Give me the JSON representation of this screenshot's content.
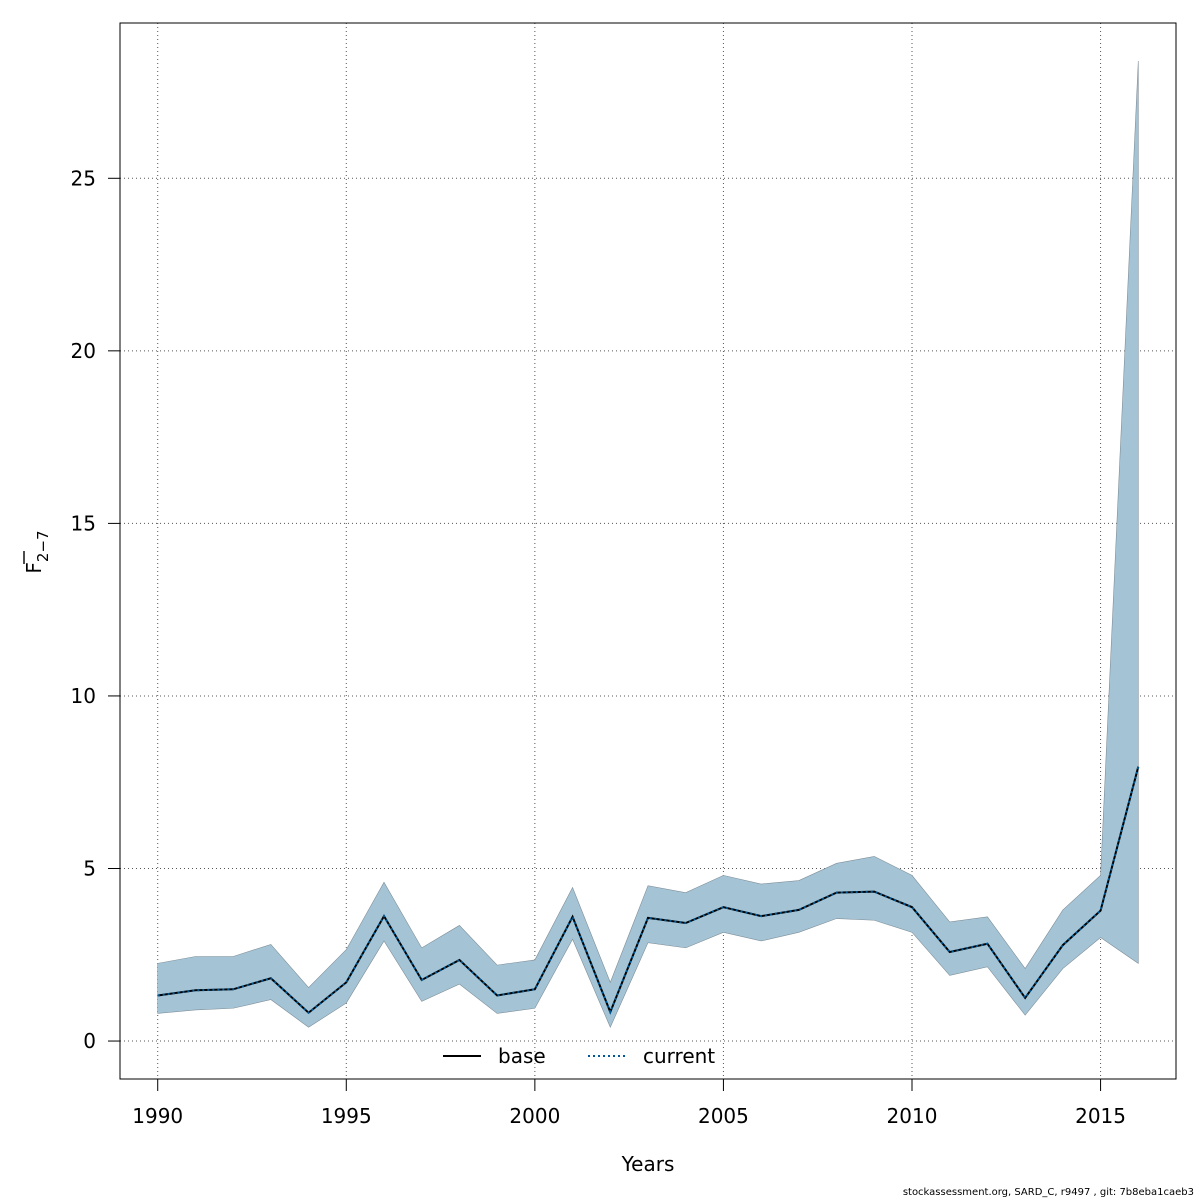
{
  "chart_data": {
    "type": "line",
    "xlabel": "Years",
    "ylabel": "F",
    "ylabel_sub": "2−7",
    "xlim": [
      1989,
      2017
    ],
    "ylim": [
      -1.1,
      29.5
    ],
    "xticks": [
      1990,
      1995,
      2000,
      2005,
      2010,
      2015
    ],
    "yticks": [
      0,
      5,
      10,
      15,
      20,
      25
    ],
    "grid": true,
    "legend_position": "bottom-center",
    "x": [
      1990,
      1991,
      1992,
      1993,
      1994,
      1995,
      1996,
      1997,
      1998,
      1999,
      2000,
      2001,
      2002,
      2003,
      2004,
      2005,
      2006,
      2007,
      2008,
      2009,
      2010,
      2011,
      2012,
      2013,
      2014,
      2015,
      2016
    ],
    "band": {
      "color": "#A4C4D6",
      "upper": [
        2.25,
        2.45,
        2.45,
        2.8,
        1.55,
        2.65,
        4.6,
        2.7,
        3.35,
        2.2,
        2.35,
        4.45,
        1.7,
        4.5,
        4.3,
        4.8,
        4.55,
        4.65,
        5.15,
        5.35,
        4.8,
        3.45,
        3.6,
        2.1,
        3.8,
        4.8,
        28.4
      ],
      "lower": [
        0.8,
        0.9,
        0.95,
        1.2,
        0.4,
        1.1,
        2.9,
        1.15,
        1.65,
        0.8,
        0.95,
        2.95,
        0.4,
        2.85,
        2.7,
        3.15,
        2.9,
        3.15,
        3.55,
        3.5,
        3.15,
        1.9,
        2.15,
        0.75,
        2.1,
        3.0,
        2.25
      ]
    },
    "series": [
      {
        "name": "base",
        "style": "solid",
        "color": "#000000",
        "values": [
          1.32,
          1.47,
          1.5,
          1.82,
          0.82,
          1.7,
          3.62,
          1.77,
          2.35,
          1.32,
          1.5,
          3.6,
          0.84,
          3.57,
          3.42,
          3.88,
          3.62,
          3.8,
          4.3,
          4.33,
          3.88,
          2.58,
          2.82,
          1.25,
          2.78,
          3.78,
          7.95
        ]
      },
      {
        "name": "current",
        "style": "dotted",
        "color": "#005A96",
        "values": [
          1.32,
          1.47,
          1.5,
          1.82,
          0.82,
          1.7,
          3.62,
          1.77,
          2.35,
          1.32,
          1.5,
          3.6,
          0.84,
          3.57,
          3.42,
          3.88,
          3.62,
          3.8,
          4.3,
          4.33,
          3.88,
          2.58,
          2.82,
          1.25,
          2.78,
          3.78,
          7.95
        ]
      }
    ]
  },
  "footer": "stockassessment.org, SARD_C, r9497 , git: 7b8eba1caeb3"
}
